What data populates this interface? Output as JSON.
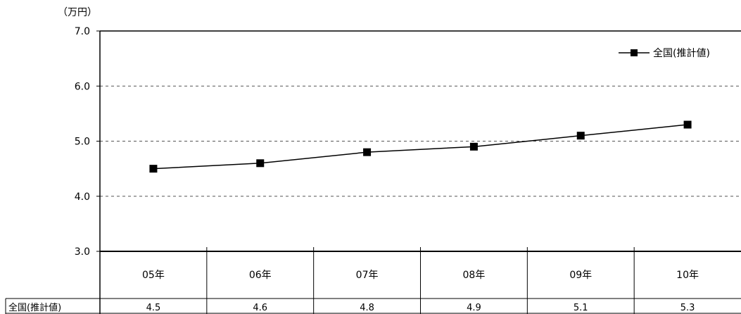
{
  "chart_data": {
    "type": "line",
    "unit_label": "（万円）",
    "categories": [
      "05年",
      "06年",
      "07年",
      "08年",
      "09年",
      "10年"
    ],
    "series": [
      {
        "name": "全国(推計値)",
        "values": [
          4.5,
          4.6,
          4.8,
          4.9,
          5.1,
          5.3
        ],
        "marker": "square",
        "color": "#000000"
      }
    ],
    "ylim": [
      3.0,
      7.0
    ],
    "yticks": [
      "3.0",
      "4.0",
      "5.0",
      "6.0",
      "7.0"
    ],
    "table_values": [
      "4.5",
      "4.6",
      "4.8",
      "4.9",
      "5.1",
      "5.3"
    ],
    "grid": "dashed horizontal",
    "legend_position": "top-right"
  }
}
